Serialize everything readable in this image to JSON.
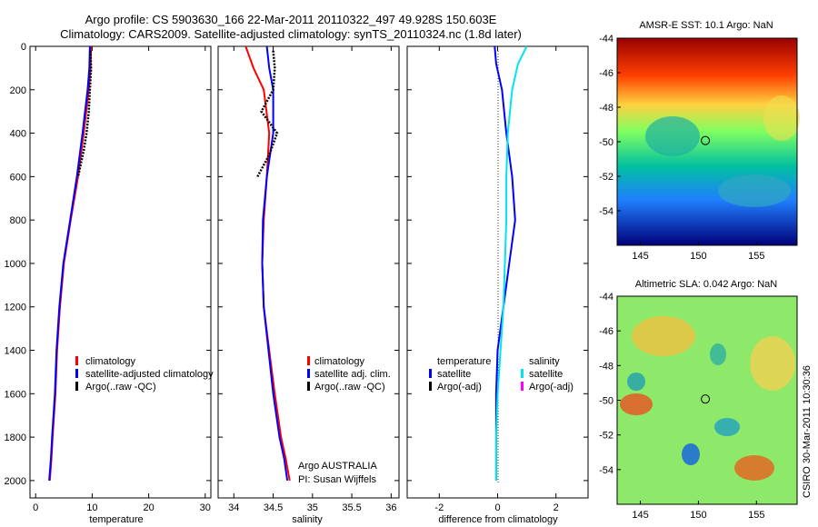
{
  "header": {
    "line1": "Argo profile: CS 5903630_166 22-Mar-2011 20110322_497 49.928S 150.603E",
    "line2": "Climatology: CARS2009. Satellite-adjusted climatology: synTS_20110324.nc (1.8d later)"
  },
  "side_label": "CSIRO 30-Mar-2011 10:30:36",
  "colors": {
    "climatology": "#ff0000",
    "satellite": "#0000ff",
    "argo": "#000000",
    "sal_sat": "#00e5ee",
    "sal_argo": "#ff00ff"
  },
  "chart_data": [
    {
      "type": "line",
      "xlabel": "temperature",
      "ylabel": "",
      "xlim": [
        -1,
        31
      ],
      "ylim": [
        2080,
        0
      ],
      "xticks": [
        0,
        10,
        20,
        30
      ],
      "yticks": [
        0,
        200,
        400,
        600,
        800,
        1000,
        1200,
        1400,
        1600,
        1800,
        2000
      ],
      "legend": {
        "placement": "lower-middle",
        "items": [
          "climatology",
          "satellite-adjusted climatology",
          "Argo(..raw -QC)"
        ]
      },
      "series": [
        {
          "name": "climatology",
          "x": [
            9.8,
            9.7,
            9.4,
            8.5,
            7.5,
            6.2,
            5.0,
            4.3,
            3.8,
            3.5,
            3.0,
            2.8,
            2.5
          ],
          "y": [
            0,
            100,
            200,
            400,
            600,
            800,
            1000,
            1200,
            1400,
            1600,
            1800,
            1900,
            2000
          ]
        },
        {
          "name": "satellite-adjusted climatology",
          "x": [
            9.6,
            9.5,
            9.2,
            8.3,
            7.3,
            6.1,
            4.9,
            4.2,
            3.7,
            3.4,
            2.9,
            2.7,
            2.4
          ],
          "y": [
            0,
            100,
            200,
            400,
            600,
            800,
            1000,
            1200,
            1400,
            1600,
            1800,
            1900,
            2000
          ]
        },
        {
          "name": "Argo(..raw -QC)",
          "x": [
            9.7,
            9.8,
            9.6,
            9.4,
            9.0,
            8.5,
            8.0,
            7.5
          ],
          "y": [
            20,
            100,
            200,
            300,
            400,
            480,
            540,
            600
          ]
        }
      ]
    },
    {
      "type": "line",
      "xlabel": "salinity",
      "ylabel": "",
      "xlim": [
        33.8,
        36.1
      ],
      "ylim": [
        2080,
        0
      ],
      "xticks": [
        34,
        34.5,
        35,
        35.5,
        36
      ],
      "legend": {
        "placement": "lower-right",
        "items": [
          "climatology",
          "satellite adj. clim.",
          "Argo(..raw -QC)"
        ]
      },
      "annotation": {
        "line1": "Argo AUSTRALIA",
        "line2": "PI: Susan Wijffels"
      },
      "series": [
        {
          "name": "climatology",
          "x": [
            34.15,
            34.25,
            34.38,
            34.45,
            34.42,
            34.38,
            34.36,
            34.38,
            34.45,
            34.52,
            34.6,
            34.66,
            34.71
          ],
          "y": [
            0,
            100,
            200,
            400,
            600,
            800,
            1000,
            1200,
            1400,
            1600,
            1800,
            1900,
            2000
          ]
        },
        {
          "name": "satellite adj. clim.",
          "x": [
            34.42,
            34.45,
            34.5,
            34.5,
            34.42,
            34.37,
            34.36,
            34.38,
            34.44,
            34.5,
            34.58,
            34.64,
            34.68
          ],
          "y": [
            0,
            100,
            200,
            400,
            600,
            800,
            1000,
            1200,
            1400,
            1600,
            1800,
            1900,
            2000
          ]
        },
        {
          "name": "Argo(..raw -QC)",
          "x": [
            34.5,
            34.52,
            34.5,
            34.35,
            34.55,
            34.45,
            34.3
          ],
          "y": [
            20,
            100,
            200,
            300,
            400,
            500,
            600
          ]
        }
      ]
    },
    {
      "type": "line",
      "xlabel": "difference from climatology",
      "ylabel": "",
      "xlim": [
        -3.1,
        3.1
      ],
      "ylim": [
        2080,
        0
      ],
      "xticks": [
        -2,
        0,
        2
      ],
      "legend": {
        "placement": "lower",
        "items": [
          "temperature",
          "satellite",
          "Argo(-adj)",
          "salinity",
          "satellite",
          "Argo(-adj)"
        ]
      },
      "series": [
        {
          "name": "satellite",
          "x": [
            -0.1,
            -0.05,
            0.15,
            0.3,
            0.5,
            0.6,
            0.4,
            0.2,
            0.0,
            -0.05,
            -0.05,
            -0.05
          ],
          "y": [
            0,
            80,
            200,
            400,
            600,
            800,
            1000,
            1200,
            1400,
            1600,
            1800,
            2000
          ]
        },
        {
          "name": "satellite",
          "x": [
            1.0,
            0.7,
            0.5,
            0.35,
            0.3,
            0.3,
            0.25,
            0.2,
            0.1,
            0.0,
            -0.05,
            -0.05
          ],
          "y": [
            0,
            80,
            200,
            400,
            600,
            800,
            1000,
            1200,
            1400,
            1600,
            1800,
            2000
          ]
        }
      ]
    },
    {
      "type": "heatmap",
      "title": "AMSR-E SST: 10.1 Argo: NaN",
      "xlim": [
        143,
        158.5
      ],
      "ylim": [
        -56,
        -44
      ],
      "xticks": [
        145,
        150,
        155
      ],
      "yticks": [
        -44,
        -46,
        -48,
        -50,
        -52,
        -54
      ],
      "marker": {
        "x": 150.6,
        "y": -49.93
      }
    },
    {
      "type": "heatmap",
      "title": "Altimetric SLA: 0.042 Argo: NaN",
      "xlim": [
        143,
        158.5
      ],
      "ylim": [
        -56,
        -44
      ],
      "xticks": [
        145,
        150,
        155
      ],
      "yticks": [
        -44,
        -46,
        -48,
        -50,
        -52,
        -54
      ],
      "marker": {
        "x": 150.6,
        "y": -49.93
      }
    }
  ]
}
